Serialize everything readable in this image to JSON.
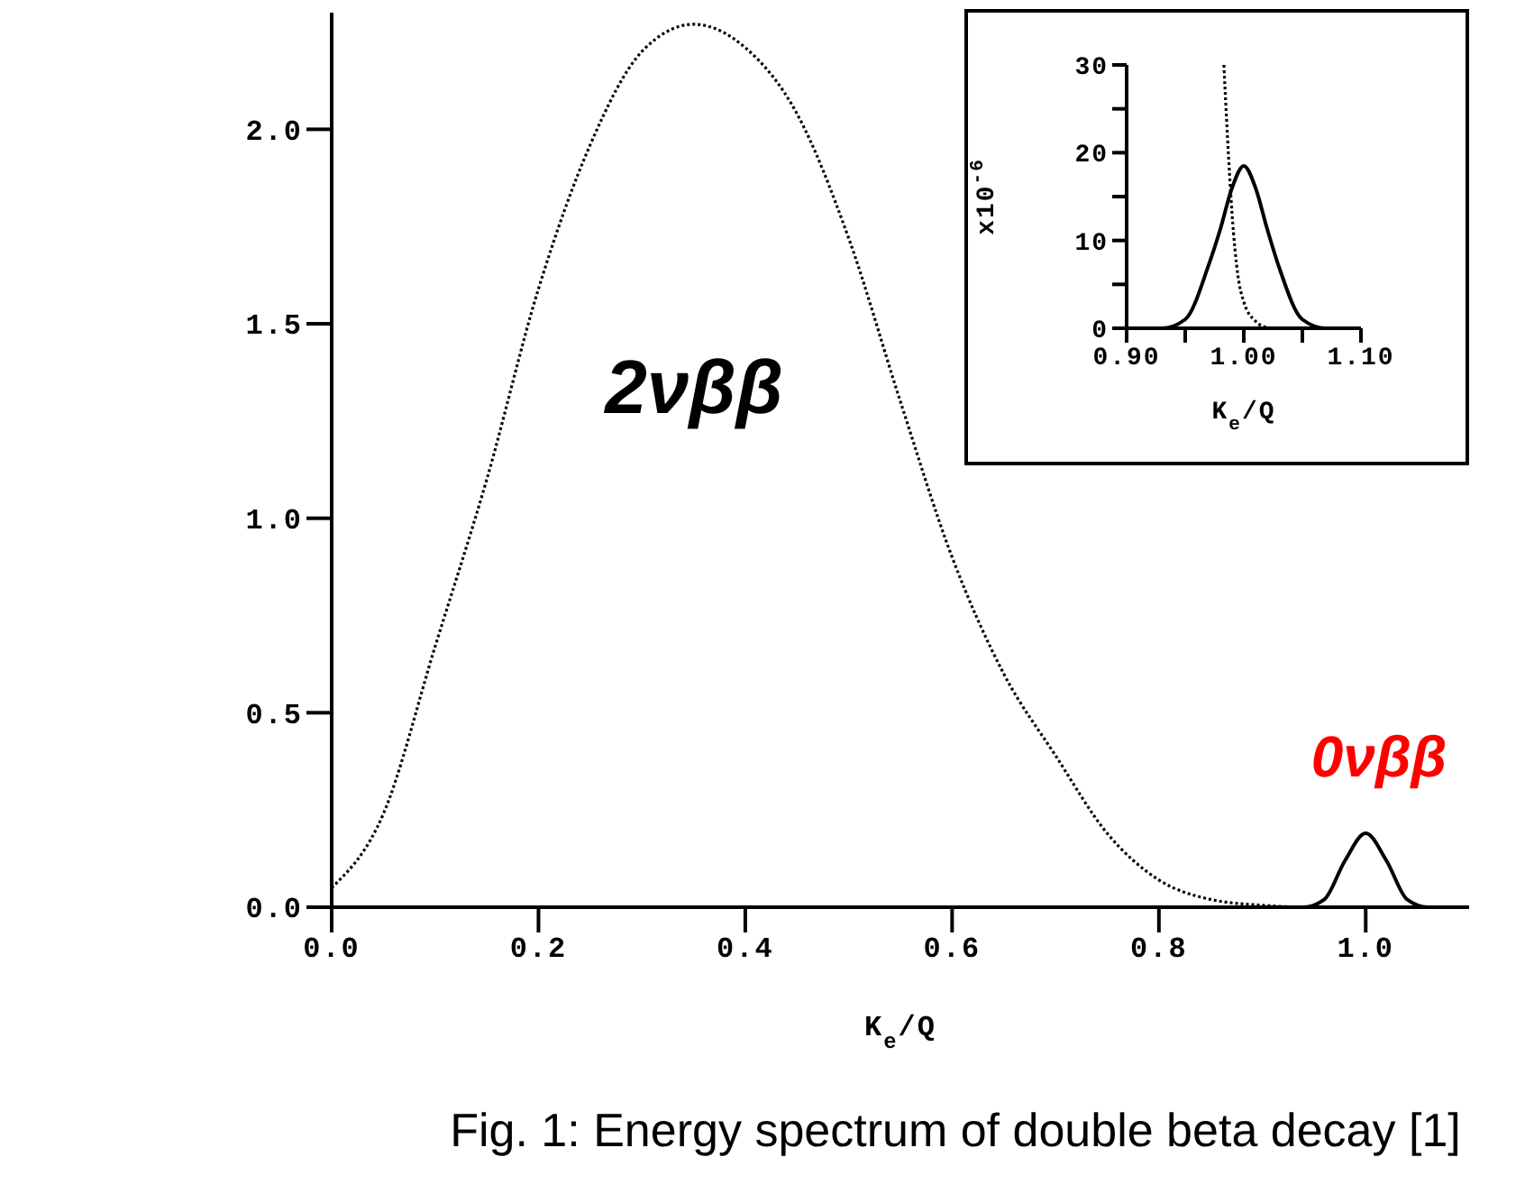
{
  "chart_data": [
    {
      "type": "line",
      "xlabel": "K$_{e}$/Q",
      "xlim": [
        0,
        1.1
      ],
      "ylim": [
        0,
        2.3
      ],
      "xticks": [
        {
          "value": 0,
          "label": "0.0"
        },
        {
          "value": 0.2,
          "label": "0.2"
        },
        {
          "value": 0.4,
          "label": "0.4"
        },
        {
          "value": 0.6,
          "label": "0.6"
        },
        {
          "value": 0.8,
          "label": "0.8"
        },
        {
          "value": 1,
          "label": "1.0"
        }
      ],
      "yticks": [
        {
          "value": 0,
          "label": "0.0"
        },
        {
          "value": 0.5,
          "label": "0.5"
        },
        {
          "value": 1,
          "label": "1.0"
        },
        {
          "value": 1.5,
          "label": "1.5"
        },
        {
          "value": 2,
          "label": "2.0"
        }
      ],
      "grid": false,
      "legend": false,
      "marker": "none",
      "series": [
        {
          "color": "#000000",
          "line_style": "dotted",
          "x": [
            0,
            0.05,
            0.1,
            0.15,
            0.2,
            0.25,
            0.3,
            0.35,
            0.4,
            0.45,
            0.5,
            0.55,
            0.6,
            0.65,
            0.7,
            0.75,
            0.8,
            0.85,
            0.9,
            0.95,
            1.0
          ],
          "values": [
            0.05,
            0.24,
            0.67,
            1.1,
            1.59,
            1.96,
            2.2,
            2.27,
            2.21,
            2.04,
            1.72,
            1.3,
            0.9,
            0.6,
            0.39,
            0.19,
            0.07,
            0.02,
            0.005,
            0,
            0
          ]
        },
        {
          "color": "#000000",
          "line_style": "solid",
          "x": [
            0.9,
            0.94,
            0.96,
            0.98,
            1.0,
            1.02,
            1.04,
            1.06,
            1.1
          ],
          "values": [
            0,
            0,
            0.02,
            0.12,
            0.19,
            0.12,
            0.02,
            0,
            0
          ]
        }
      ],
      "annotations": [
        "2νββ",
        "0νββ",
        "Fig. 1: Energy spectrum of double beta decay [1]"
      ]
    },
    {
      "type": "line",
      "xlabel": "K$_{e}$/Q",
      "ylabel": "x10$^{-6}$",
      "xlim": [
        0.9,
        1.1
      ],
      "ylim": [
        0,
        30
      ],
      "xticks": [
        {
          "value": 0.9,
          "label": "0.90"
        },
        {
          "value": 0.95,
          "label": null
        },
        {
          "value": 1,
          "label": "1.00"
        },
        {
          "value": 1.05,
          "label": null
        },
        {
          "value": 1.1,
          "label": "1.10"
        }
      ],
      "yticks": [
        0,
        {
          "value": 5,
          "label": null
        },
        10,
        {
          "value": 15,
          "label": null
        },
        20,
        {
          "value": 25,
          "label": null
        },
        30
      ],
      "grid": false,
      "legend": false,
      "marker": "none",
      "series": [
        {
          "color": "#000000",
          "line_style": "dotted",
          "x": [
            0.983,
            0.986,
            0.99,
            0.995,
            1.0,
            1.01,
            1.02,
            1.03,
            1.1
          ],
          "values": [
            30,
            22,
            13,
            6,
            3,
            0.8,
            0.1,
            0,
            0
          ]
        },
        {
          "color": "#000000",
          "line_style": "solid",
          "x": [
            0.9,
            0.93,
            0.95,
            0.97,
            0.98,
            0.99,
            1.0,
            1.01,
            1.02,
            1.03,
            1.05,
            1.07,
            1.1
          ],
          "values": [
            0,
            0,
            1,
            7.2,
            11.3,
            16,
            18.5,
            16,
            11.3,
            7,
            1,
            0,
            0
          ]
        }
      ]
    }
  ]
}
